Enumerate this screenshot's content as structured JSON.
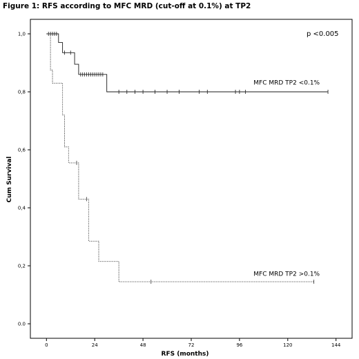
{
  "figure_title": "Figure 1: RFS according to MFC MRD (cut-off at 0.1%) at TP2",
  "chart_data": {
    "type": "line",
    "title": "Figure 1: RFS according to MFC MRD (cut-off at 0.1%) at TP2",
    "xlabel": "RFS (months)",
    "ylabel": "Cum Survival",
    "xlim": [
      -8,
      152
    ],
    "ylim": [
      -0.05,
      1.05
    ],
    "x_ticks": [
      0,
      24,
      48,
      72,
      96,
      120,
      144
    ],
    "y_ticks": [
      0.0,
      0.2,
      0.4,
      0.6,
      0.8,
      1.0
    ],
    "y_tick_labels": [
      "0.0",
      "0,2",
      "0,4",
      "0,6",
      "0,8",
      "1,0"
    ],
    "annotation": "p <0.005",
    "step_style": "kaplan-meier",
    "grid": false,
    "series": [
      {
        "name": "MFC MRD TP2 <0.1%",
        "line_style": "solid",
        "color": "#1a1a1a",
        "steps": [
          [
            0,
            1.0
          ],
          [
            6,
            0.97
          ],
          [
            8,
            0.935
          ],
          [
            14,
            0.895
          ],
          [
            16,
            0.86
          ],
          [
            30,
            0.8
          ],
          [
            140,
            0.8
          ]
        ],
        "censored_x": [
          1,
          2,
          3,
          4,
          5,
          9,
          12,
          17,
          18,
          19,
          20,
          21,
          22,
          23,
          24,
          25,
          26,
          27,
          28,
          36,
          40,
          44,
          48,
          54,
          60,
          66,
          76,
          80,
          94,
          96,
          99,
          140
        ],
        "label_pos": [
          103,
          0.825
        ]
      },
      {
        "name": "MFC MRD TP2 >0.1%",
        "line_style": "dotted",
        "color": "#333333",
        "steps": [
          [
            0,
            1.0
          ],
          [
            2,
            0.875
          ],
          [
            3,
            0.83
          ],
          [
            8,
            0.72
          ],
          [
            9,
            0.61
          ],
          [
            11,
            0.555
          ],
          [
            16,
            0.43
          ],
          [
            21,
            0.285
          ],
          [
            26,
            0.215
          ],
          [
            36,
            0.145
          ],
          [
            133,
            0.145
          ]
        ],
        "censored_x": [
          15,
          20,
          52,
          133
        ],
        "label_pos": [
          103,
          0.165
        ]
      }
    ]
  }
}
